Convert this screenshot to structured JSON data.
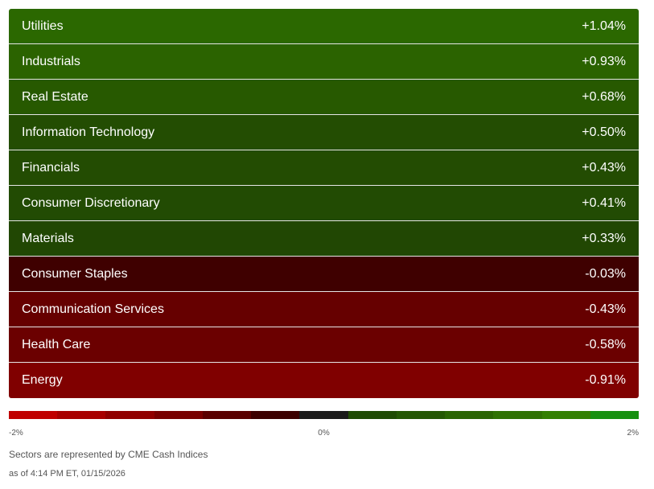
{
  "sectors": [
    {
      "name": "Utilities",
      "change": "+1.04%",
      "color": "#2b6800"
    },
    {
      "name": "Industrials",
      "change": "+0.93%",
      "color": "#2b6300"
    },
    {
      "name": "Real Estate",
      "change": "+0.68%",
      "color": "#275900"
    },
    {
      "name": "Information Technology",
      "change": "+0.50%",
      "color": "#234d02"
    },
    {
      "name": "Financials",
      "change": "+0.43%",
      "color": "#234c02"
    },
    {
      "name": "Consumer Discretionary",
      "change": "+0.41%",
      "color": "#224b03"
    },
    {
      "name": "Materials",
      "change": "+0.33%",
      "color": "#214703"
    },
    {
      "name": "Consumer Staples",
      "change": "-0.03%",
      "color": "#3f0000"
    },
    {
      "name": "Communication Services",
      "change": "-0.43%",
      "color": "#660000"
    },
    {
      "name": "Health Care",
      "change": "-0.58%",
      "color": "#6b0000"
    },
    {
      "name": "Energy",
      "change": "-0.91%",
      "color": "#800000"
    }
  ],
  "legend": {
    "colors": [
      "#c00000",
      "#a80000",
      "#900000",
      "#780000",
      "#5a0000",
      "#3c0000",
      "#1a1a1a",
      "#1f4a03",
      "#245703",
      "#2a6502",
      "#2f7202",
      "#338001",
      "#169010"
    ],
    "min_label": "-2%",
    "mid_label": "0%",
    "max_label": "2%"
  },
  "notes": {
    "source": "Sectors are represented by CME Cash Indices",
    "timestamp": "as of 4:14 PM ET, 01/15/2026"
  }
}
